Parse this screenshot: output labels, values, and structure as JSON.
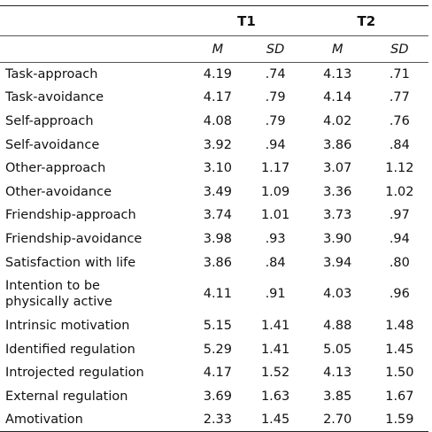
{
  "table": {
    "groups": [
      "T1",
      "T2"
    ],
    "subheaders": [
      "M",
      "SD",
      "M",
      "SD"
    ],
    "rows": [
      {
        "label": "Task-approach",
        "values": [
          "4.19",
          ".74",
          "4.13",
          ".71"
        ]
      },
      {
        "label": "Task-avoidance",
        "values": [
          "4.17",
          ".79",
          "4.14",
          ".77"
        ]
      },
      {
        "label": "Self-approach",
        "values": [
          "4.08",
          ".79",
          "4.02",
          ".76"
        ]
      },
      {
        "label": "Self-avoidance",
        "values": [
          "3.92",
          ".94",
          "3.86",
          ".84"
        ]
      },
      {
        "label": "Other-approach",
        "values": [
          "3.10",
          "1.17",
          "3.07",
          "1.12"
        ]
      },
      {
        "label": "Other-avoidance",
        "values": [
          "3.49",
          "1.09",
          "3.36",
          "1.02"
        ]
      },
      {
        "label": "Friendship-approach",
        "values": [
          "3.74",
          "1.01",
          "3.73",
          ".97"
        ]
      },
      {
        "label": "Friendship-avoidance",
        "values": [
          "3.98",
          ".93",
          "3.90",
          ".94"
        ]
      },
      {
        "label": "Satisfaction with life",
        "values": [
          "3.86",
          ".84",
          "3.94",
          ".80"
        ]
      },
      {
        "label_lines": [
          "Intention to be",
          "physically active"
        ],
        "values": [
          "4.11",
          ".91",
          "4.03",
          ".96"
        ]
      },
      {
        "label": "Intrinsic motivation",
        "values": [
          "5.15",
          "1.41",
          "4.88",
          "1.48"
        ]
      },
      {
        "label": "Identified regulation",
        "values": [
          "5.29",
          "1.41",
          "5.05",
          "1.45"
        ]
      },
      {
        "label": "Introjected regulation",
        "values": [
          "4.17",
          "1.52",
          "4.13",
          "1.50"
        ]
      },
      {
        "label": "External regulation",
        "values": [
          "3.69",
          "1.63",
          "3.85",
          "1.67"
        ]
      },
      {
        "label": "Amotivation",
        "values": [
          "2.33",
          "1.45",
          "2.70",
          "1.59"
        ]
      }
    ]
  }
}
